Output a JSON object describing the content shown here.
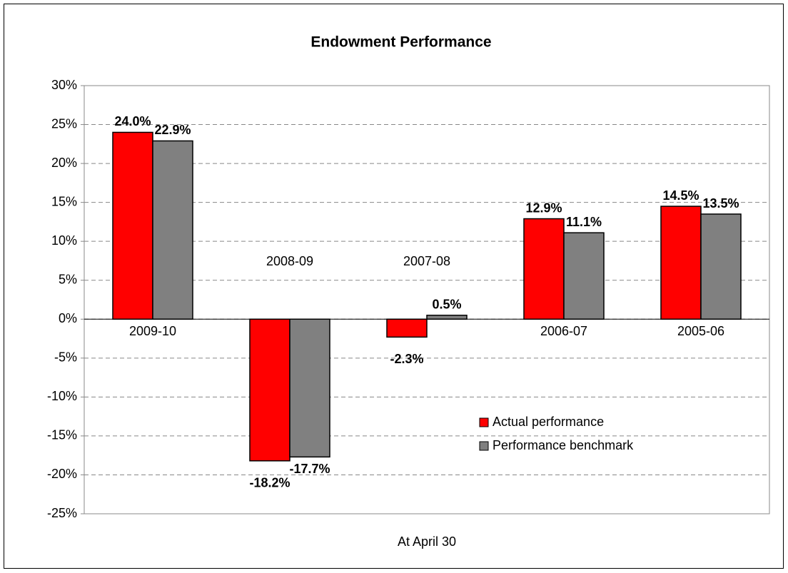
{
  "chart_data": {
    "type": "bar",
    "title": "Endowment Performance",
    "x_label": "At April 30",
    "categories": [
      "2009-10",
      "2008-09",
      "2007-08",
      "2006-07",
      "2005-06"
    ],
    "series": [
      {
        "name": "Actual performance",
        "color": "#ff0000",
        "values": [
          24.0,
          -18.2,
          -2.3,
          12.9,
          14.5
        ],
        "value_labels": [
          "24.0%",
          "-18.2%",
          "-2.3%",
          "12.9%",
          "14.5%"
        ]
      },
      {
        "name": "Performance benchmark",
        "color": "#808080",
        "values": [
          22.9,
          -17.7,
          0.5,
          11.1,
          13.5
        ],
        "value_labels": [
          "22.9%",
          "-17.7%",
          "0.5%",
          "11.1%",
          "13.5%"
        ]
      }
    ],
    "ylim": [
      -25,
      30
    ],
    "yticks": [
      {
        "value": -25,
        "label": "-25%"
      },
      {
        "value": -20,
        "label": "-20%"
      },
      {
        "value": -15,
        "label": "-15%"
      },
      {
        "value": -10,
        "label": "-10%"
      },
      {
        "value": -5,
        "label": "-5%"
      },
      {
        "value": 0,
        "label": "0%"
      },
      {
        "value": 5,
        "label": "5%"
      },
      {
        "value": 10,
        "label": "10%"
      },
      {
        "value": 15,
        "label": "15%"
      },
      {
        "value": 20,
        "label": "20%"
      },
      {
        "value": 25,
        "label": "25%"
      },
      {
        "value": 30,
        "label": "30%"
      }
    ],
    "grid": true,
    "legend": "lower right"
  }
}
